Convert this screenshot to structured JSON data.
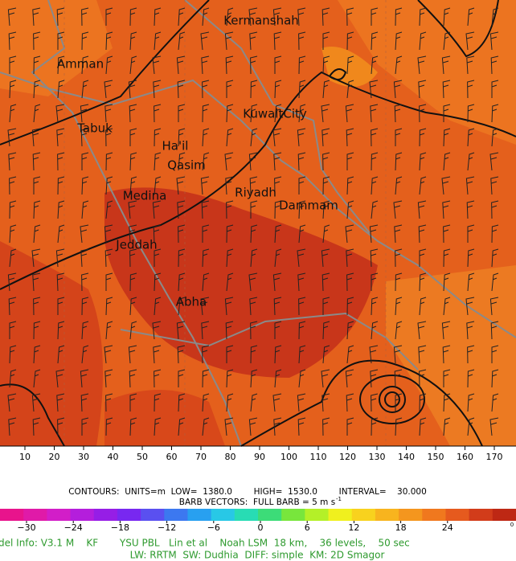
{
  "map": {
    "cities": [
      "Kermanshah",
      "Amman",
      "KuwaitCity",
      "Tabuk",
      "Ha'il",
      "Qasim",
      "Riyadh",
      "Medina",
      "Dammam",
      "Jeddah",
      "Abha"
    ]
  },
  "axis": {
    "x_ticks": [
      "10",
      "20",
      "30",
      "40",
      "50",
      "60",
      "70",
      "80",
      "90",
      "100",
      "110",
      "120",
      "130",
      "140",
      "150",
      "160",
      "170"
    ]
  },
  "info": {
    "contours": "CONTOURS:  UNITS=m  LOW=  1380.0        HIGH=  1530.0        INTERVAL=    30.000",
    "barbs": "BARB VECTORS:  FULL BARB = 5 m s",
    "barbs_exponent": "-1"
  },
  "colorbar": {
    "colors": [
      "#e8148c",
      "#e01aa8",
      "#d21ec8",
      "#b41edc",
      "#961ee6",
      "#7828f0",
      "#5a50f0",
      "#3c78f0",
      "#28a0f0",
      "#28c8e6",
      "#28dcb4",
      "#3cdc78",
      "#78e63c",
      "#b4f028",
      "#f0f01e",
      "#f8d21e",
      "#f8b41e",
      "#f4961e",
      "#f0781e",
      "#e65a1e",
      "#d23c1a",
      "#be2814"
    ],
    "labels": [
      "−30",
      "−24",
      "−18",
      "−12",
      "−6",
      "0",
      "6",
      "12",
      "18",
      "24"
    ],
    "end_label": "0"
  },
  "model_info": [
    "del Info: V3.1 M    KF       YSU PBL   Lin et al    Noah LSM  18 km,    36 levels,    50 sec",
    "LW: RRTM  SW: Dudhia  DIFF: simple  KM: 2D Smagor"
  ]
}
